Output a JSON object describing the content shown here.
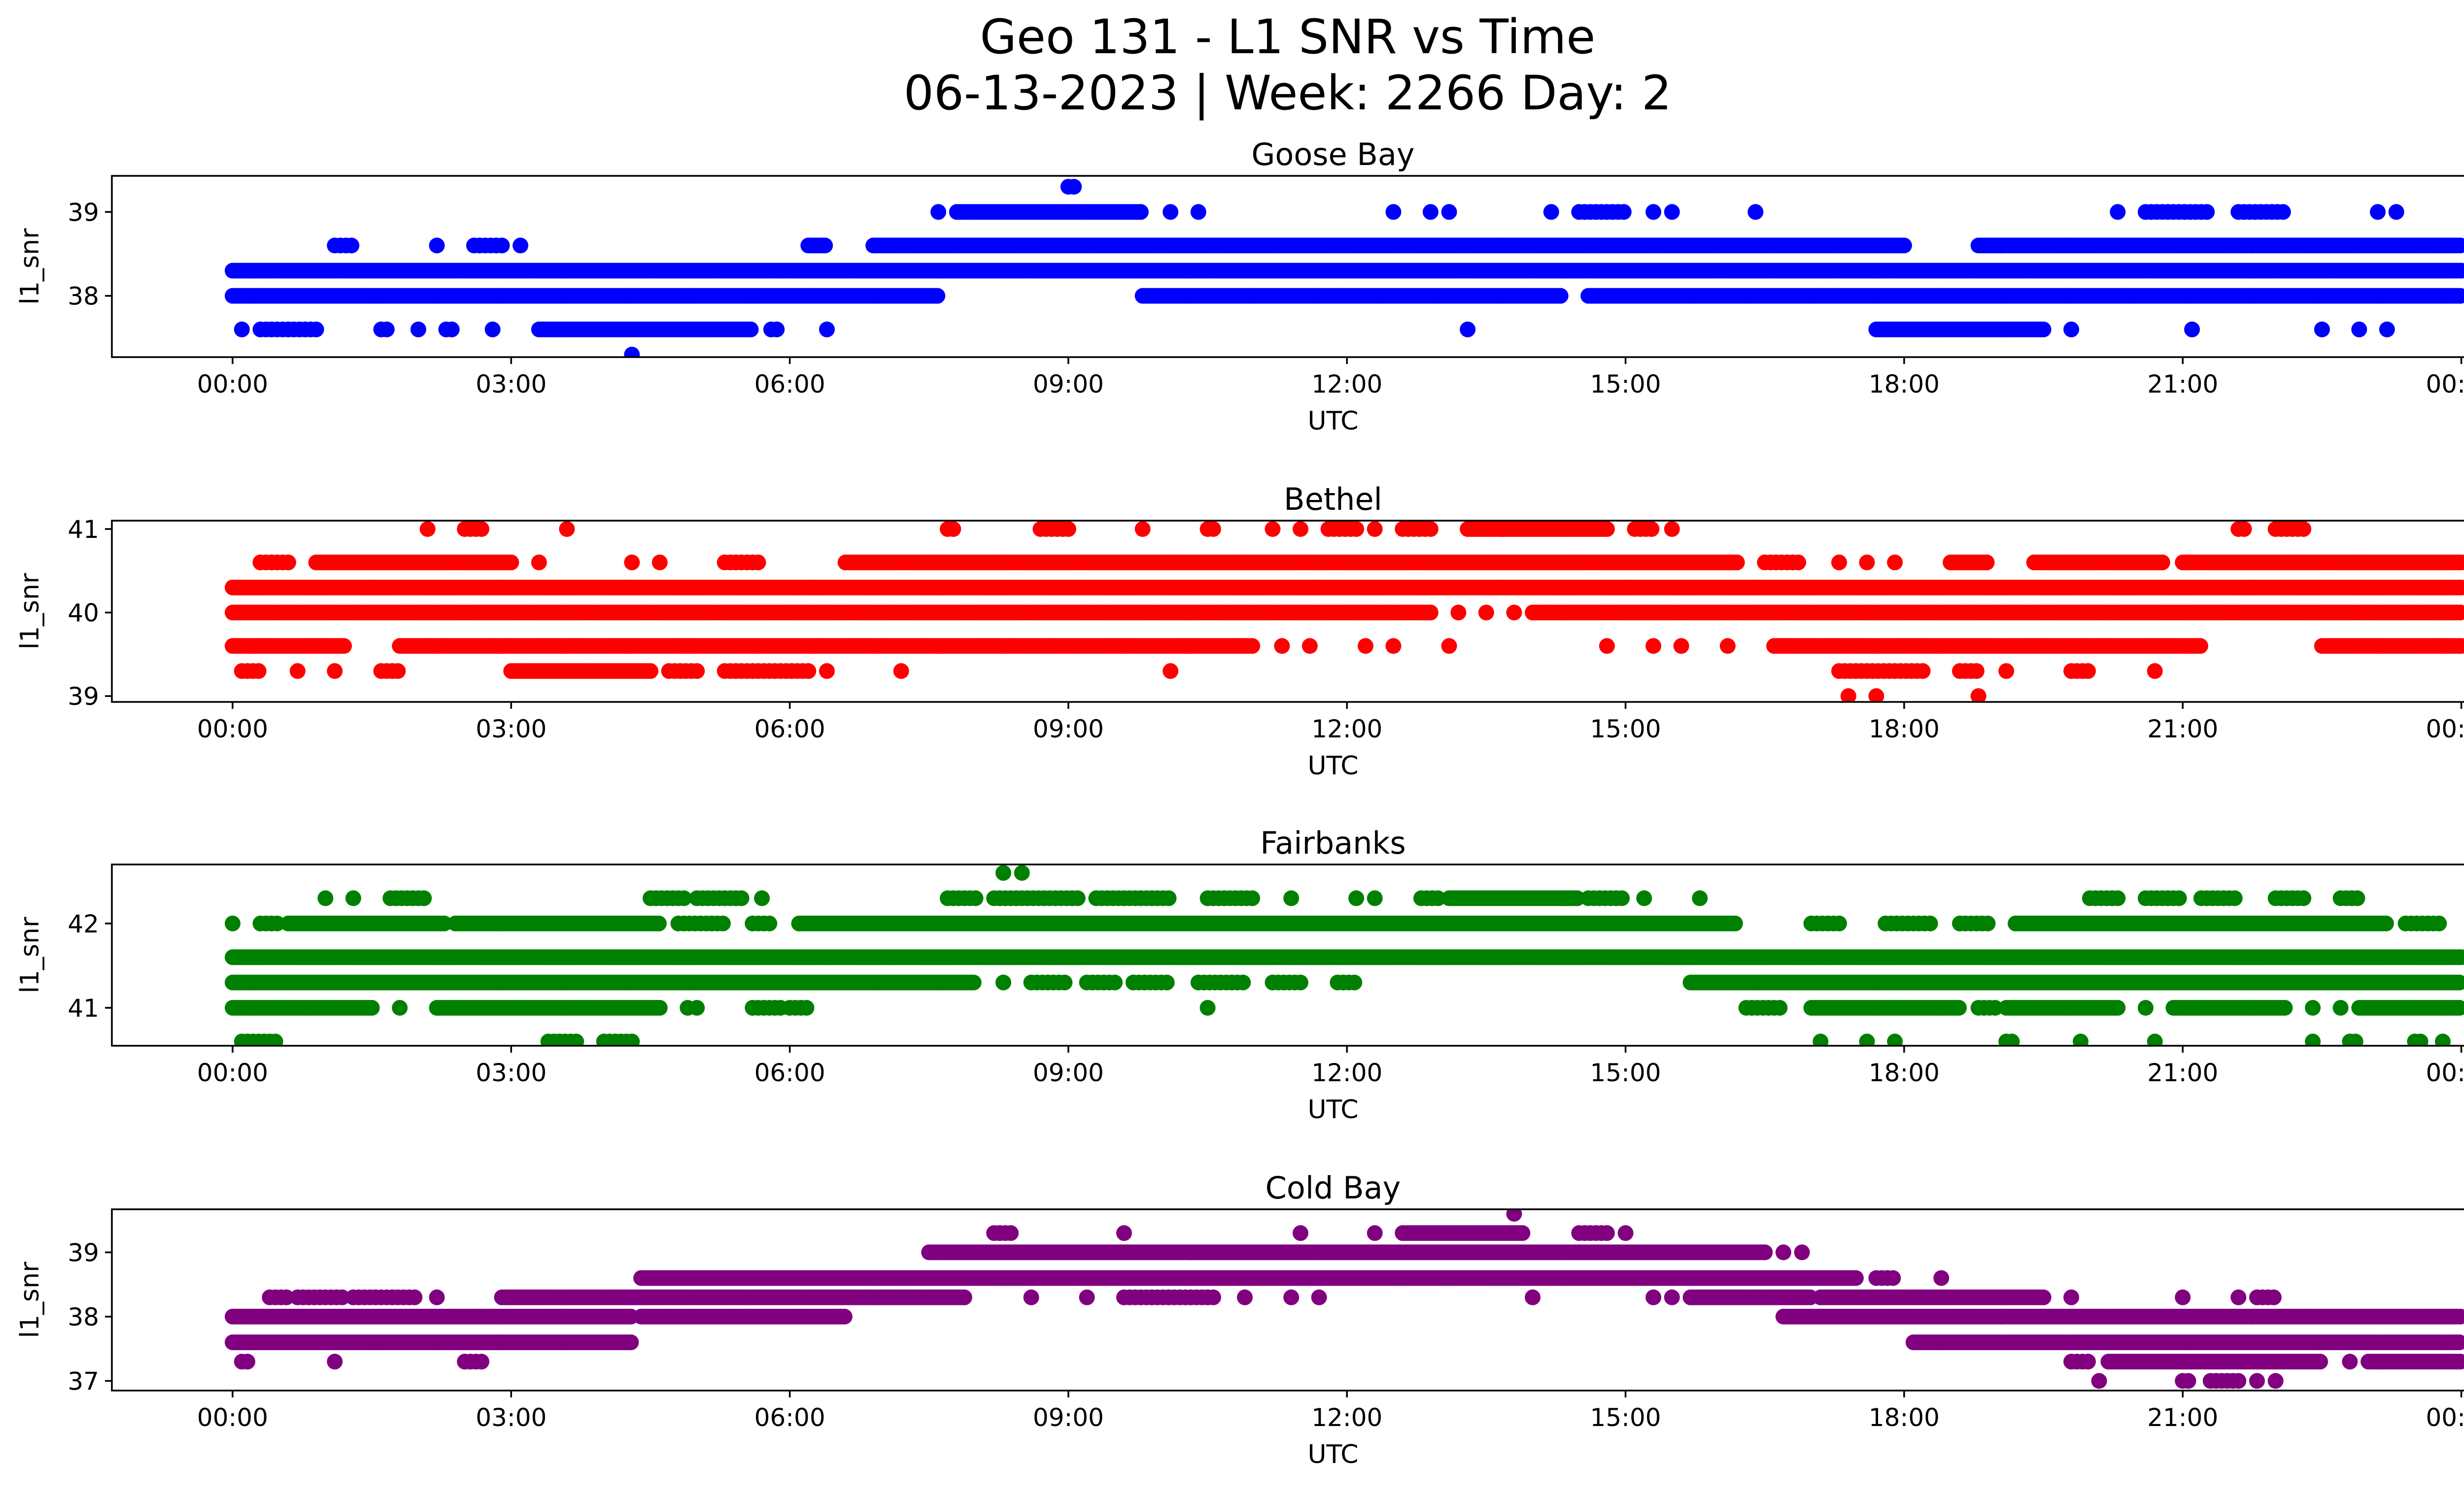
{
  "figure": {
    "title_line1": "Geo 131 - L1 SNR vs Time",
    "title_line2": "06-13-2023 | Week: 2266 Day: 2"
  },
  "chart_data": [
    {
      "type": "scatter",
      "title": "Goose Bay",
      "xlabel": "UTC",
      "ylabel": "l1_snr",
      "color": "#0000ff",
      "xlim": [
        -1.3,
        25.0
      ],
      "ylim": [
        37.27,
        39.43
      ],
      "xticks": [
        "00:00",
        "03:00",
        "06:00",
        "09:00",
        "12:00",
        "15:00",
        "18:00",
        "21:00",
        "00:00"
      ],
      "yticks": [
        38,
        39
      ],
      "series": [
        {
          "y": 38.3,
          "segments": [
            [
              0.0,
              24.0
            ]
          ]
        },
        {
          "y": 38.0,
          "segments": [
            [
              0.0,
              7.6
            ],
            [
              9.8,
              14.3
            ],
            [
              14.6,
              24.0
            ]
          ]
        },
        {
          "y": 38.6,
          "segments": [
            [
              6.2,
              6.4
            ],
            [
              6.9,
              18.0
            ],
            [
              18.8,
              24.0
            ]
          ],
          "sparse": [
            [
              1.1,
              1.3
            ],
            [
              2.2
            ],
            [
              2.6,
              2.9
            ],
            [
              3.1
            ]
          ]
        },
        {
          "y": 37.6,
          "segments": [
            [
              3.3,
              5.6
            ],
            [
              17.7,
              19.5
            ]
          ],
          "sparse": [
            [
              0.1
            ],
            [
              0.3,
              0.9
            ],
            [
              1.6,
              1.7
            ],
            [
              2.0
            ],
            [
              2.3,
              2.4
            ],
            [
              2.8
            ],
            [
              5.8,
              5.9
            ],
            [
              6.4
            ],
            [
              13.3
            ],
            [
              19.8
            ],
            [
              21.1
            ],
            [
              22.5
            ],
            [
              22.9
            ],
            [
              23.2
            ]
          ]
        },
        {
          "y": 39.0,
          "segments": [
            [
              7.8,
              9.8
            ]
          ],
          "sparse": [
            [
              7.6
            ],
            [
              10.1
            ],
            [
              10.4
            ],
            [
              12.5
            ],
            [
              12.9
            ],
            [
              13.1
            ],
            [
              14.2
            ],
            [
              14.5,
              15.0
            ],
            [
              15.3
            ],
            [
              15.5
            ],
            [
              16.4
            ],
            [
              20.3
            ],
            [
              20.6,
              21.3
            ],
            [
              21.6,
              22.1
            ],
            [
              23.1
            ],
            [
              23.3
            ]
          ]
        },
        {
          "y": 39.3,
          "sparse": [
            [
              9.0,
              9.1
            ]
          ]
        },
        {
          "y": 37.3,
          "sparse": [
            [
              4.3
            ]
          ]
        }
      ]
    },
    {
      "type": "scatter",
      "title": "Bethel",
      "xlabel": "UTC",
      "ylabel": "l1_snr",
      "color": "#ff0000",
      "xlim": [
        -1.3,
        25.0
      ],
      "ylim": [
        38.93,
        41.1
      ],
      "xticks": [
        "00:00",
        "03:00",
        "06:00",
        "09:00",
        "12:00",
        "15:00",
        "18:00",
        "21:00",
        "00:00"
      ],
      "yticks": [
        39,
        40,
        41
      ],
      "series": [
        {
          "y": 40.3,
          "segments": [
            [
              0.0,
              24.0
            ]
          ]
        },
        {
          "y": 40.0,
          "segments": [
            [
              0.0,
              12.9
            ],
            [
              14.0,
              24.0
            ]
          ],
          "sparse": [
            [
              13.2
            ],
            [
              13.5
            ],
            [
              13.8
            ]
          ]
        },
        {
          "y": 40.6,
          "segments": [
            [
              0.9,
              3.0
            ],
            [
              6.6,
              16.2
            ],
            [
              18.5,
              18.9
            ],
            [
              19.4,
              20.8
            ],
            [
              21.0,
              24.0
            ]
          ],
          "sparse": [
            [
              0.3,
              0.6
            ],
            [
              3.3
            ],
            [
              4.3
            ],
            [
              4.6
            ],
            [
              5.3,
              5.7
            ],
            [
              16.5,
              16.9
            ],
            [
              17.3
            ],
            [
              17.6
            ],
            [
              17.9
            ]
          ]
        },
        {
          "y": 39.6,
          "segments": [
            [
              0.0,
              1.2
            ],
            [
              1.8,
              11.0
            ],
            [
              16.6,
              21.2
            ],
            [
              22.5,
              24.0
            ]
          ],
          "sparse": [
            [
              11.3
            ],
            [
              11.6
            ],
            [
              12.2
            ],
            [
              12.5
            ],
            [
              13.1
            ],
            [
              14.8
            ],
            [
              15.3
            ],
            [
              15.6
            ],
            [
              16.1
            ]
          ]
        },
        {
          "y": 39.3,
          "segments": [
            [
              3.0,
              4.5
            ]
          ],
          "sparse": [
            [
              0.1,
              0.3
            ],
            [
              0.7
            ],
            [
              1.1
            ],
            [
              1.6,
              1.8
            ],
            [
              4.7,
              5.0
            ],
            [
              5.3,
              6.2
            ],
            [
              6.4
            ],
            [
              7.2
            ],
            [
              10.1
            ],
            [
              17.3,
              18.2
            ],
            [
              18.6,
              18.8
            ],
            [
              19.1
            ],
            [
              19.8,
              20.0
            ],
            [
              20.7
            ]
          ]
        },
        {
          "y": 41.0,
          "segments": [
            [
              13.3,
              14.8
            ]
          ],
          "sparse": [
            [
              2.1
            ],
            [
              2.5,
              2.7
            ],
            [
              3.6
            ],
            [
              7.7,
              7.8
            ],
            [
              8.7,
              9.0
            ],
            [
              9.8
            ],
            [
              10.5,
              10.6
            ],
            [
              11.2
            ],
            [
              11.5
            ],
            [
              11.8,
              12.1
            ],
            [
              12.3
            ],
            [
              12.6,
              12.9
            ],
            [
              15.1,
              15.3
            ],
            [
              15.5
            ],
            [
              21.6,
              21.7
            ],
            [
              22.0,
              22.3
            ]
          ]
        },
        {
          "y": 39.0,
          "sparse": [
            [
              17.4
            ],
            [
              17.7
            ],
            [
              18.8
            ]
          ]
        }
      ]
    },
    {
      "type": "scatter",
      "title": "Fairbanks",
      "xlabel": "UTC",
      "ylabel": "l1_snr",
      "color": "#008000",
      "xlim": [
        -1.3,
        25.0
      ],
      "ylim": [
        40.55,
        42.7
      ],
      "xticks": [
        "00:00",
        "03:00",
        "06:00",
        "09:00",
        "12:00",
        "15:00",
        "18:00",
        "21:00",
        "00:00"
      ],
      "yticks": [
        41,
        42
      ],
      "series": [
        {
          "y": 41.6,
          "segments": [
            [
              0.0,
              24.0
            ]
          ]
        },
        {
          "y": 41.3,
          "segments": [
            [
              0.0,
              8.0
            ],
            [
              15.7,
              24.0
            ]
          ],
          "sparse": [
            [
              8.3
            ],
            [
              8.6,
              9.0
            ],
            [
              9.2,
              9.5
            ],
            [
              9.7,
              10.1
            ],
            [
              10.4,
              10.9
            ],
            [
              11.2,
              11.5
            ],
            [
              11.9,
              12.1
            ]
          ]
        },
        {
          "y": 42.0,
          "segments": [
            [
              0.6,
              2.3
            ],
            [
              2.4,
              4.6
            ],
            [
              6.1,
              16.2
            ],
            [
              19.2,
              23.2
            ]
          ],
          "sparse": [
            [
              0.0
            ],
            [
              0.3,
              0.5
            ],
            [
              4.8,
              5.3
            ],
            [
              5.6,
              5.8
            ],
            [
              17.0,
              17.3
            ],
            [
              17.8,
              18.3
            ],
            [
              18.6,
              18.9
            ],
            [
              23.4,
              23.8
            ]
          ]
        },
        {
          "y": 41.0,
          "segments": [
            [
              0.0,
              1.5
            ],
            [
              2.2,
              4.6
            ],
            [
              17.0,
              18.6
            ],
            [
              19.1,
              20.3
            ],
            [
              20.9,
              22.1
            ],
            [
              22.9,
              24.0
            ]
          ],
          "sparse": [
            [
              1.8
            ],
            [
              4.9
            ],
            [
              5.0
            ],
            [
              5.6,
              5.9
            ],
            [
              6.0,
              6.2
            ],
            [
              10.5
            ],
            [
              16.3,
              16.7
            ],
            [
              18.8,
              19.0
            ],
            [
              20.6
            ],
            [
              22.4
            ],
            [
              22.7
            ]
          ]
        },
        {
          "y": 42.3,
          "segments": [
            [
              13.1,
              14.5
            ]
          ],
          "sparse": [
            [
              1.0
            ],
            [
              1.3
            ],
            [
              1.7,
              2.1
            ],
            [
              4.5,
              4.9
            ],
            [
              5.0,
              5.5
            ],
            [
              5.7
            ],
            [
              7.7,
              8.0
            ],
            [
              8.2,
              9.1
            ],
            [
              9.3,
              10.1
            ],
            [
              10.5,
              11.0
            ],
            [
              11.4
            ],
            [
              12.1
            ],
            [
              12.3
            ],
            [
              12.8,
              13.0
            ],
            [
              14.6,
              15.0
            ],
            [
              15.2
            ],
            [
              15.8
            ],
            [
              20.0,
              20.3
            ],
            [
              20.6,
              21.0
            ],
            [
              21.2,
              21.6
            ],
            [
              22.0,
              22.3
            ],
            [
              22.7,
              22.9
            ]
          ]
        },
        {
          "y": 40.6,
          "sparse": [
            [
              0.1,
              0.5
            ],
            [
              3.4,
              3.7
            ],
            [
              4.0,
              4.3
            ],
            [
              17.1
            ],
            [
              17.6
            ],
            [
              17.9
            ],
            [
              19.1,
              19.2
            ],
            [
              19.9
            ],
            [
              20.7
            ],
            [
              22.4
            ],
            [
              22.8,
              22.9
            ],
            [
              23.5,
              23.6
            ],
            [
              23.8
            ]
          ]
        },
        {
          "y": 42.6,
          "sparse": [
            [
              8.3
            ],
            [
              8.5
            ]
          ]
        }
      ]
    },
    {
      "type": "scatter",
      "title": "Cold Bay",
      "xlabel": "UTC",
      "ylabel": "l1_snr",
      "color": "#800080",
      "xlim": [
        -1.3,
        25.0
      ],
      "ylim": [
        36.85,
        39.67
      ],
      "xticks": [
        "00:00",
        "03:00",
        "06:00",
        "09:00",
        "12:00",
        "15:00",
        "18:00",
        "21:00",
        "00:00"
      ],
      "yticks": [
        37,
        38,
        39
      ],
      "series": [
        {
          "y": 38.0,
          "segments": [
            [
              0.0,
              4.3
            ],
            [
              4.4,
              6.6
            ],
            [
              16.7,
              24.0
            ]
          ]
        },
        {
          "y": 37.6,
          "segments": [
            [
              0.0,
              4.3
            ],
            [
              18.1,
              24.0
            ]
          ]
        },
        {
          "y": 38.3,
          "segments": [
            [
              2.9,
              7.9
            ],
            [
              15.7,
              17.0
            ],
            [
              17.1,
              19.5
            ]
          ],
          "sparse": [
            [
              0.4,
              0.6
            ],
            [
              0.7,
              1.2
            ],
            [
              1.3,
              2.0
            ],
            [
              2.2
            ],
            [
              8.6
            ],
            [
              9.2
            ],
            [
              9.6,
              10.6
            ],
            [
              10.9
            ],
            [
              11.4
            ],
            [
              11.7
            ],
            [
              14.0
            ],
            [
              15.3
            ],
            [
              15.5
            ],
            [
              19.8
            ],
            [
              21.0
            ],
            [
              21.6
            ],
            [
              21.8,
              22.0
            ]
          ]
        },
        {
          "y": 38.6,
          "segments": [
            [
              4.4,
              17.5
            ]
          ],
          "sparse": [
            [
              17.7,
              17.9
            ],
            [
              18.4
            ]
          ]
        },
        {
          "y": 39.0,
          "segments": [
            [
              7.5,
              16.5
            ]
          ],
          "sparse": [
            [
              16.7
            ],
            [
              16.9
            ]
          ]
        },
        {
          "y": 37.3,
          "segments": [
            [
              20.2,
              22.5
            ],
            [
              23.0,
              24.0
            ]
          ],
          "sparse": [
            [
              0.1,
              0.2
            ],
            [
              1.1
            ],
            [
              2.5,
              2.7
            ],
            [
              19.8,
              20.0
            ],
            [
              22.8
            ]
          ]
        },
        {
          "y": 39.3,
          "segments": [
            [
              12.6,
              13.9
            ]
          ],
          "sparse": [
            [
              8.2,
              8.4
            ],
            [
              9.6
            ],
            [
              11.5
            ],
            [
              12.3
            ],
            [
              14.5,
              14.8
            ],
            [
              15.0
            ]
          ]
        },
        {
          "y": 37.0,
          "sparse": [
            [
              20.1
            ],
            [
              21.0,
              21.1
            ],
            [
              21.3,
              21.6
            ],
            [
              21.8
            ],
            [
              22.0
            ]
          ]
        },
        {
          "y": 39.6,
          "sparse": [
            [
              13.8
            ]
          ]
        }
      ]
    }
  ]
}
